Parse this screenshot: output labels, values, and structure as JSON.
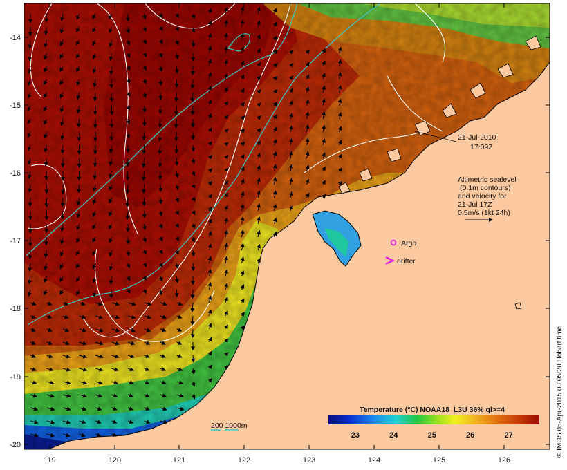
{
  "map": {
    "date": "21-Jul-2010",
    "time": "17:09Z",
    "sealevel_lines": [
      "Altimetric sealevel",
      "(0.1m contours)",
      "and velocity for",
      "21-Jul 17Z"
    ],
    "velocity_scale": "0.5m/s (1kt 24h)",
    "argo_label": "Argo",
    "drifter_label": "drifter",
    "bathy_label": "200  1000m",
    "credit": "© IMOS 05-Apr-2015 00:05:30 Hobart time",
    "x_ticks": [
      "119",
      "120",
      "121",
      "122",
      "123",
      "124",
      "125",
      "126"
    ],
    "y_ticks": [
      "-14",
      "-15",
      "-16",
      "-17",
      "-18",
      "-19",
      "-20"
    ],
    "colorbar": {
      "title": "Temperature (°C) NOAA18_L3U 36% ql>=4",
      "ticks": [
        "23",
        "24",
        "25",
        "26",
        "27"
      ],
      "range": [
        22.3,
        27.8
      ]
    },
    "colors": {
      "land": "#fcc9a0",
      "warm": "#b41a00",
      "contour": "#ffffff",
      "isobath": "#3fc8c8",
      "argo": "#e020e0",
      "drifter": "#e020e0"
    }
  }
}
